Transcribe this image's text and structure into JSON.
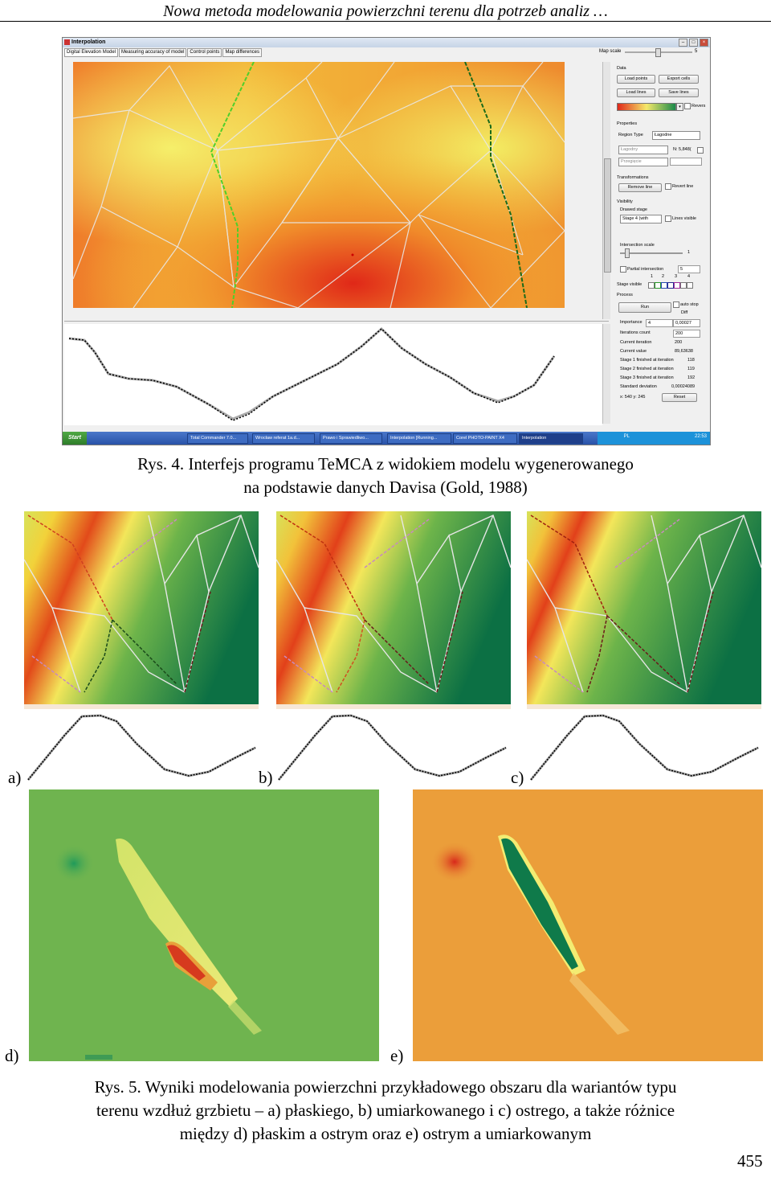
{
  "running_header": "Nowa metoda modelowania powierzchni terenu dla potrzeb analiz …",
  "window": {
    "title": "Interpolation",
    "tabs": [
      "Digital Elevation Model",
      "Measuring accuracy of model",
      "Control points",
      "Map differences"
    ],
    "map_scale_label": "Map scale",
    "map_scale_value": "5",
    "panel": {
      "data_label": "Data",
      "load_points": "Load points",
      "export_cells": "Export cells",
      "load_lines": "Load lines",
      "save_lines": "Save lines",
      "revers_label": "Revers",
      "properties_label": "Properties",
      "region_type_label": "Region Type",
      "region_type_value": "Łagodne",
      "terrain_value": "Łagodny",
      "n_value": "N: 5,848(",
      "section_value": "Przegięcie",
      "transformations_label": "Transformations",
      "remove_line": "Remove line",
      "revert_line": "Revert line",
      "visibility_label": "Visibility",
      "drawed_stage_label": "Drawed stage",
      "stage_value": "Stage 4 (with",
      "lines_visible": "Lines visible",
      "intersection_scale_label": "Intersection scale",
      "intersection_scale_value": "1",
      "partial_intersection": "Partial intersection",
      "partial_value": "5",
      "stage_ticks": [
        "1",
        "2",
        "3",
        "4"
      ],
      "stage_visible_label": "Stage visible",
      "process_label": "Process",
      "run": "Run",
      "auto_stop": "auto stop",
      "diff_label": "Diff",
      "importance_label": "Importance",
      "importance_value": "4",
      "diff_value": "0,00027",
      "iterations_count_label": "Iterations count",
      "iterations_count_value": "200",
      "current_iteration_label": "Current iteration",
      "current_iteration_value": "200",
      "current_value_label": "Current value",
      "current_value_value": "89,63638",
      "stage1_label": "Stage 1 finished at iteration",
      "stage1_value": "118",
      "stage2_label": "Stage 2 finished at iteration",
      "stage2_value": "119",
      "stage3_label": "Stage 3 finished at iteration",
      "stage3_value": "192",
      "std_label": "Standard deviation",
      "std_value": "0,00024089",
      "coords": "x: 540 y: 245",
      "reset": "Reset"
    },
    "taskbar": {
      "start": "Start",
      "items": [
        "Total Commander 7.0...",
        "Wrocław referat 1a.d...",
        "Prawo i Sprawiedliwo...",
        "Interpolation [Running...",
        "Corel PHOTO-PAINT X4",
        "Interpolation"
      ],
      "language": "PL",
      "clock": "22:53"
    }
  },
  "fig4_caption_line1": "Rys. 4. Interfejs programu TeMCA z widokiem modelu wygenerowanego",
  "fig4_caption_line2": "na podstawie danych Davisa (Gold, 1988)",
  "panel_labels": {
    "a": "a)",
    "b": "b)",
    "c": "c)",
    "d": "d)",
    "e": "e)"
  },
  "fig5_caption_line1": "Rys. 5. Wyniki modelowania powierzchni przykładowego obszaru dla wariantów typu",
  "fig5_caption_line2": "terenu wzdłuż grzbietu – a) płaskiego, b) umiarkowanego i c) ostrego, a także różnice",
  "fig5_caption_line3": "między d) płaskim a ostrym oraz e) ostrym a umiarkowanym",
  "page_number": "455",
  "colors": {
    "map_red": "#e23b1a",
    "map_yellow": "#f3e95a",
    "map_green": "#0e7a4a",
    "diff_green": "#6fb44f",
    "diff_orange": "#eb9e3a"
  }
}
